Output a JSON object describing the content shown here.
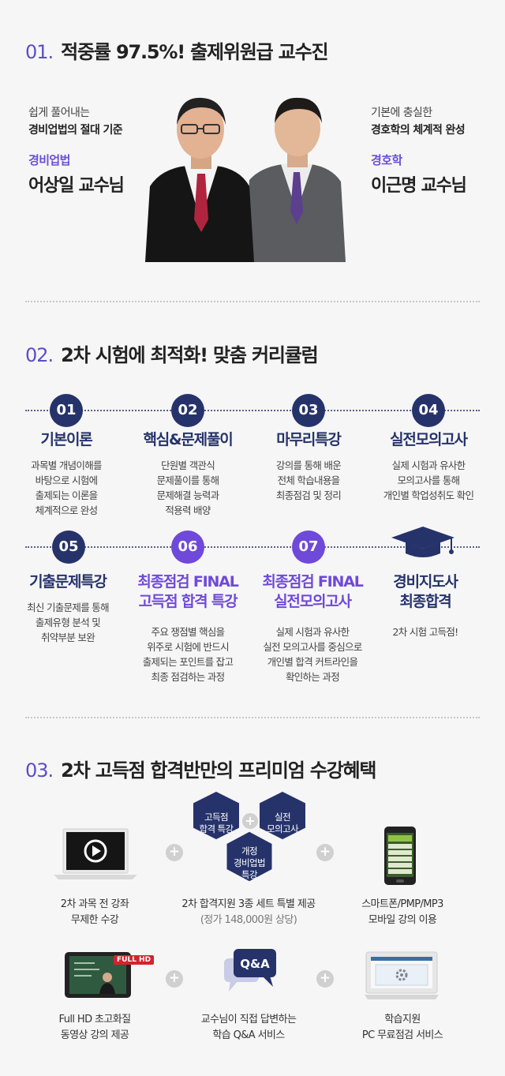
{
  "section1": {
    "num": "01.",
    "title": "적중률 97.5%! 출제위원급 교수진",
    "left": {
      "desc1": "쉽게 풀어내는",
      "desc2": "경비업법의 절대 기준",
      "subject": "경비업법",
      "name": "어상일 교수님"
    },
    "right": {
      "desc1": "기본에 충실한",
      "desc2": "경호학의 체계적 완성",
      "subject": "경호학",
      "name": "이근명 교수님"
    }
  },
  "section2": {
    "num": "02.",
    "title": "2차 시험에 최적화! 맞춤 커리큘럼",
    "steps": [
      {
        "num": "01",
        "title": "기본이론",
        "desc": "과목별 개념이해를\n바탕으로 시험에\n출제되는 이론을\n체계적으로  완성"
      },
      {
        "num": "02",
        "title": "핵심&문제풀이",
        "desc": "단원별 객관식\n문제풀이를 통해\n문제해결 능력과\n적용력 배양"
      },
      {
        "num": "03",
        "title": "마무리특강",
        "desc": "강의를 통해 배운\n전체 학습내용을\n최종점검 및 정리"
      },
      {
        "num": "04",
        "title": "실전모의고사",
        "desc": "실제 시험과 유사한\n모의고사를 통해\n개인별 학업성취도 확인"
      },
      {
        "num": "05",
        "title": "기출문제특강",
        "desc": "최신 기출문제를 통해\n출제유형 분석 및\n취약부분 보완"
      },
      {
        "num": "06",
        "title1": "최종점검 FINAL",
        "title2": "고득점 합격 특강",
        "desc": "주요 쟁점별 핵심을\n위주로 시험에 반드시\n출제되는 포인트를 잡고\n최종 점검하는 과정"
      },
      {
        "num": "07",
        "title1": "최종점검 FINAL",
        "title2": "실전모의고사",
        "desc": "실제 시험과 유사한\n실전 모의고사를 중심으로\n개인별 합격 커트라인을\n확인하는 과정"
      }
    ],
    "goal": {
      "title1": "경비지도사",
      "title2": "최종합격",
      "desc": "2차 시험 고득점!"
    }
  },
  "section3": {
    "num": "03.",
    "title": "2차 고득점 합격반만의 프리미엄 수강혜택",
    "hex": {
      "a": "고득점\n합격 특강",
      "b": "실전\n모의고사",
      "c": "개정\n경비업법\n특강"
    },
    "benefits": [
      {
        "label": "2차 과목 전 강좌\n무제한 수강"
      },
      {
        "label": "2차 합격지원 3종 세트 특별 제공",
        "sub": "(정가 148,000원 상당)"
      },
      {
        "label": "스마트폰/PMP/MP3\n모바일 강의 이용"
      },
      {
        "label": "Full HD 초고화질\n동영상 강의 제공",
        "badge": "FULL HD"
      },
      {
        "label": "교수님이 직접 답변하는\n학습 Q&A 서비스",
        "bubble": "Q&A"
      },
      {
        "label": "학습지원\nPC 무료점검 서비스"
      }
    ]
  },
  "colors": {
    "navy": "#26336b",
    "purple": "#6f49d9",
    "accent": "#5b4ec7"
  }
}
